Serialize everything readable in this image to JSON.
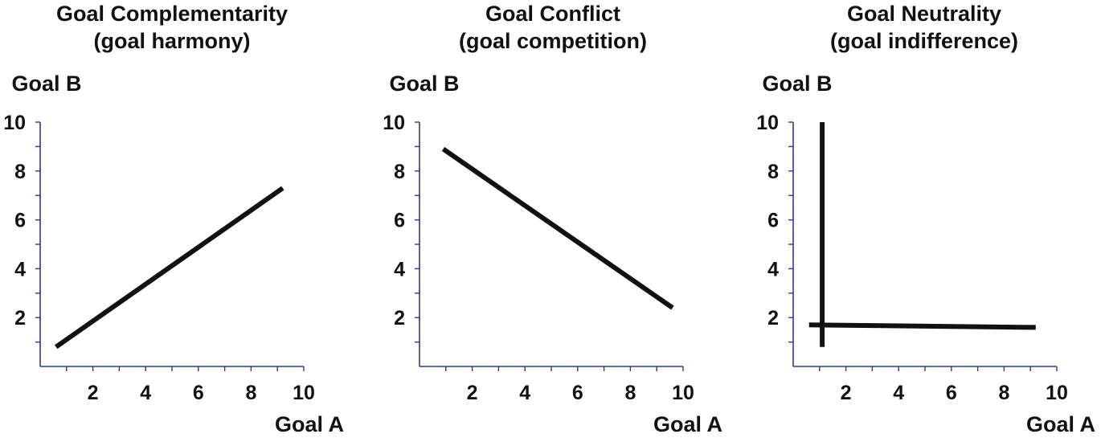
{
  "chart_data": [
    {
      "type": "line",
      "title": "Goal Complementarity",
      "subtitle": "(goal harmony)",
      "xlabel": "Goal A",
      "ylabel": "Goal B",
      "xlim": [
        0,
        10
      ],
      "ylim": [
        0,
        10
      ],
      "x_ticks": [
        2,
        4,
        6,
        8,
        10
      ],
      "y_ticks": [
        2,
        4,
        6,
        8,
        10
      ],
      "grid": false,
      "series": [
        {
          "points": [
            [
              0.6,
              0.8
            ],
            [
              9.2,
              7.3
            ]
          ]
        }
      ]
    },
    {
      "type": "line",
      "title": "Goal Conflict",
      "subtitle": "(goal competition)",
      "xlabel": "Goal A",
      "ylabel": "Goal B",
      "xlim": [
        0,
        10
      ],
      "ylim": [
        0,
        10
      ],
      "x_ticks": [
        2,
        4,
        6,
        8,
        10
      ],
      "y_ticks": [
        2,
        4,
        6,
        8,
        10
      ],
      "grid": false,
      "series": [
        {
          "points": [
            [
              0.9,
              8.9
            ],
            [
              9.6,
              2.4
            ]
          ]
        }
      ]
    },
    {
      "type": "line",
      "title": "Goal Neutrality",
      "subtitle": "(goal indifference)",
      "xlabel": "Goal A",
      "ylabel": "Goal B",
      "xlim": [
        0,
        10
      ],
      "ylim": [
        0,
        10
      ],
      "x_ticks": [
        2,
        4,
        6,
        8,
        10
      ],
      "y_ticks": [
        2,
        4,
        6,
        8,
        10
      ],
      "grid": false,
      "series": [
        {
          "points": [
            [
              1.1,
              10
            ],
            [
              1.1,
              0.8
            ]
          ]
        },
        {
          "points": [
            [
              0.6,
              1.7
            ],
            [
              9.2,
              1.6
            ]
          ]
        }
      ]
    }
  ],
  "colors": {
    "axis": "#2b3a8c",
    "line": "#111111",
    "text": "#111111"
  }
}
